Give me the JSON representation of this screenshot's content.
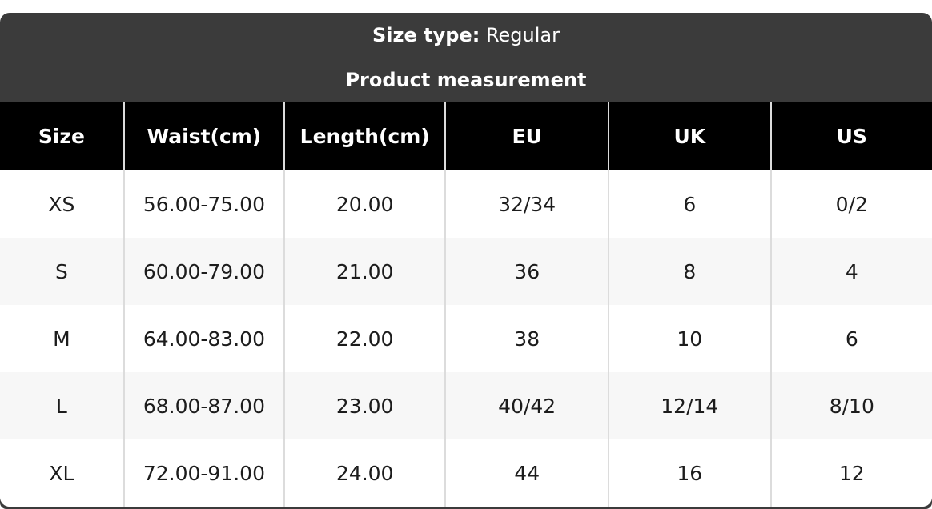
{
  "band": {
    "size_type_label": "Size type:",
    "size_type_value": "Regular",
    "subtitle": "Product measurement"
  },
  "table": {
    "columns": [
      "Size",
      "Waist(cm)",
      "Length(cm)",
      "EU",
      "UK",
      "US"
    ],
    "column_widths_pct": [
      13.3,
      17.2,
      17.3,
      17.5,
      17.4,
      17.3
    ],
    "rows": [
      [
        "XS",
        "56.00-75.00",
        "20.00",
        "32/34",
        "6",
        "0/2"
      ],
      [
        "S",
        "60.00-79.00",
        "21.00",
        "36",
        "8",
        "4"
      ],
      [
        "M",
        "64.00-83.00",
        "22.00",
        "38",
        "10",
        "6"
      ],
      [
        "L",
        "68.00-87.00",
        "23.00",
        "40/42",
        "12/14",
        "8/10"
      ],
      [
        "XL",
        "72.00-91.00",
        "24.00",
        "44",
        "16",
        "12"
      ]
    ]
  },
  "colors": {
    "band_bg": "#3b3b3b",
    "header_bg": "#000000",
    "header_text": "#ffffff",
    "row_alt_bg": "#f7f7f7",
    "separator": "#dcdcdc",
    "cell_text": "#1c1c1c"
  }
}
